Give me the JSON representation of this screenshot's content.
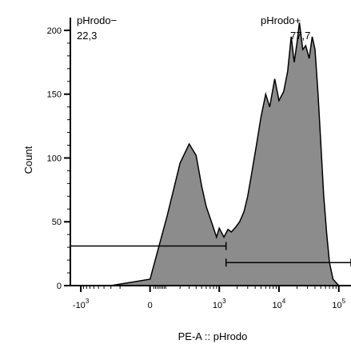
{
  "chart_data": {
    "type": "area",
    "xlabel": "PE-A :: pHrodo",
    "ylabel": "Count",
    "ylim": [
      0,
      210
    ],
    "grid": false,
    "x_scale": "biexponential",
    "x_ticks": [
      {
        "value": -1000,
        "base": "-10",
        "exp": "3"
      },
      {
        "value": 0,
        "base": "0",
        "exp": ""
      },
      {
        "value": 1000,
        "base": "10",
        "exp": "3"
      },
      {
        "value": 10000,
        "base": "10",
        "exp": "4"
      },
      {
        "value": 100000,
        "base": "10",
        "exp": "5"
      }
    ],
    "y_ticks": [
      0,
      50,
      100,
      150,
      200
    ],
    "histogram": {
      "x": [
        -1500,
        -300,
        0,
        100,
        200,
        300,
        400,
        500,
        600,
        700,
        800,
        900,
        1000,
        1200,
        1400,
        1600,
        1900,
        2200,
        2600,
        3000,
        3500,
        4200,
        5000,
        6000,
        7000,
        8500,
        10000,
        12000,
        14000,
        16000,
        18000,
        20000,
        22000,
        25000,
        28000,
        32000,
        36000,
        40000,
        45000,
        50000,
        56000,
        63000,
        70000,
        80000,
        100000,
        160000
      ],
      "y": [
        0,
        0,
        5,
        55,
        96,
        111,
        102,
        78,
        62,
        53,
        45,
        38,
        45,
        38,
        44,
        42,
        46,
        50,
        58,
        70,
        88,
        110,
        132,
        150,
        140,
        162,
        145,
        152,
        168,
        195,
        175,
        190,
        206,
        185,
        188,
        178,
        195,
        185,
        150,
        112,
        70,
        40,
        18,
        5,
        0,
        0
      ]
    },
    "gates": [
      {
        "name": "pHrodo−",
        "value": "22,3",
        "x_start": -1500,
        "x_end": 1300,
        "y": 31
      },
      {
        "name": "pHrodo+",
        "value": "77,7",
        "x_start": 1300,
        "x_end": 160000,
        "y": 18
      }
    ]
  }
}
